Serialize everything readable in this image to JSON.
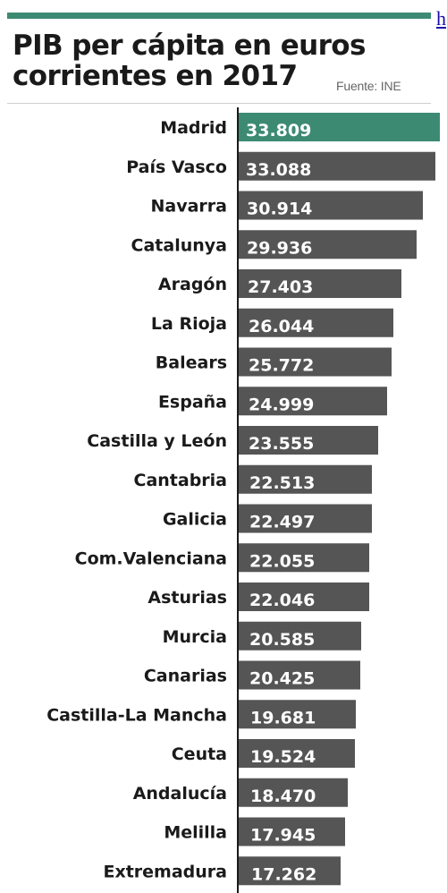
{
  "header": {
    "title_line1": "PIB per cápita en euros",
    "title_line2": "corrientes en 2017",
    "source": "Fuente: INE",
    "corner_link": "h"
  },
  "colors": {
    "accent": "#3d8a72",
    "bar": "#555555",
    "highlight_bar": "#3d8a72",
    "axis": "#1a1a1a"
  },
  "chart_data": {
    "type": "bar",
    "orientation": "horizontal",
    "title": "PIB per cápita en euros corrientes en 2017",
    "source": "Fuente: INE",
    "categories": [
      "Madrid",
      "País Vasco",
      "Navarra",
      "Catalunya",
      "Aragón",
      "La Rioja",
      "Balears",
      "España",
      "Castilla y León",
      "Cantabria",
      "Galicia",
      "Com.Valenciana",
      "Asturias",
      "Murcia",
      "Canarias",
      "Castilla-La Mancha",
      "Ceuta",
      "Andalucía",
      "Melilla",
      "Extremadura"
    ],
    "value_labels": [
      "33.809",
      "33.088",
      "30.914",
      "29.936",
      "27.403",
      "26.044",
      "25.772",
      "24.999",
      "23.555",
      "22.513",
      "22.497",
      "22.055",
      "22.046",
      "20.585",
      "20.425",
      "19.681",
      "19.524",
      "18.470",
      "17.945",
      "17.262"
    ],
    "values": [
      33809,
      33088,
      30914,
      29936,
      27403,
      26044,
      25772,
      24999,
      23555,
      22513,
      22497,
      22055,
      22046,
      20585,
      20425,
      19681,
      19524,
      18470,
      17945,
      17262
    ],
    "highlight": "Madrid",
    "grid": false,
    "legend": "none"
  }
}
